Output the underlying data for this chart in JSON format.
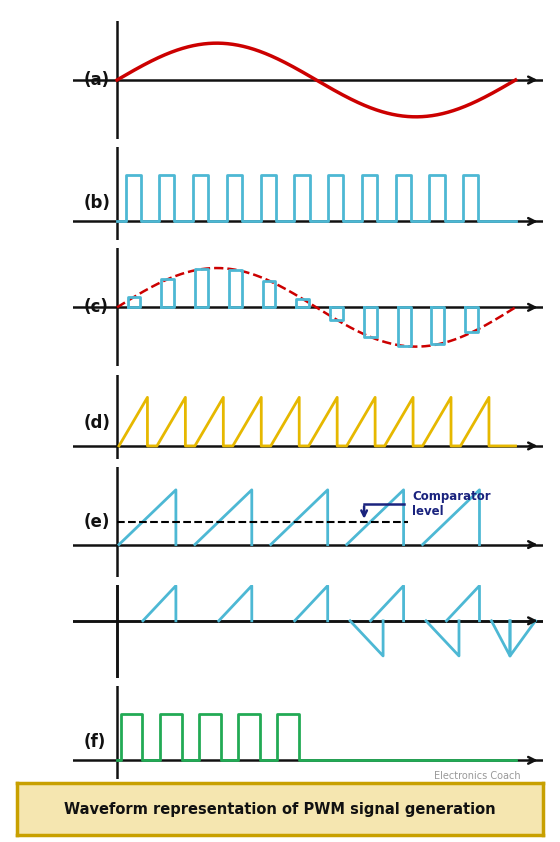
{
  "fig_width": 5.6,
  "fig_height": 8.42,
  "bg_color": "#ffffff",
  "panel_labels": [
    "(a)",
    "(b)",
    "(c)",
    "(d)",
    "(e)",
    "(f)"
  ],
  "title": "Waveform representation of PWM signal generation",
  "title_color": "#c8a000",
  "title_bg": "#f5e6b0",
  "sin_color": "#cc0000",
  "pwm_color": "#4db8d4",
  "sawtooth_color": "#e6b800",
  "green_color": "#22aa55",
  "dashed_red": "#cc0000",
  "comparator_color": "#1a237e",
  "axis_color": "#111111"
}
